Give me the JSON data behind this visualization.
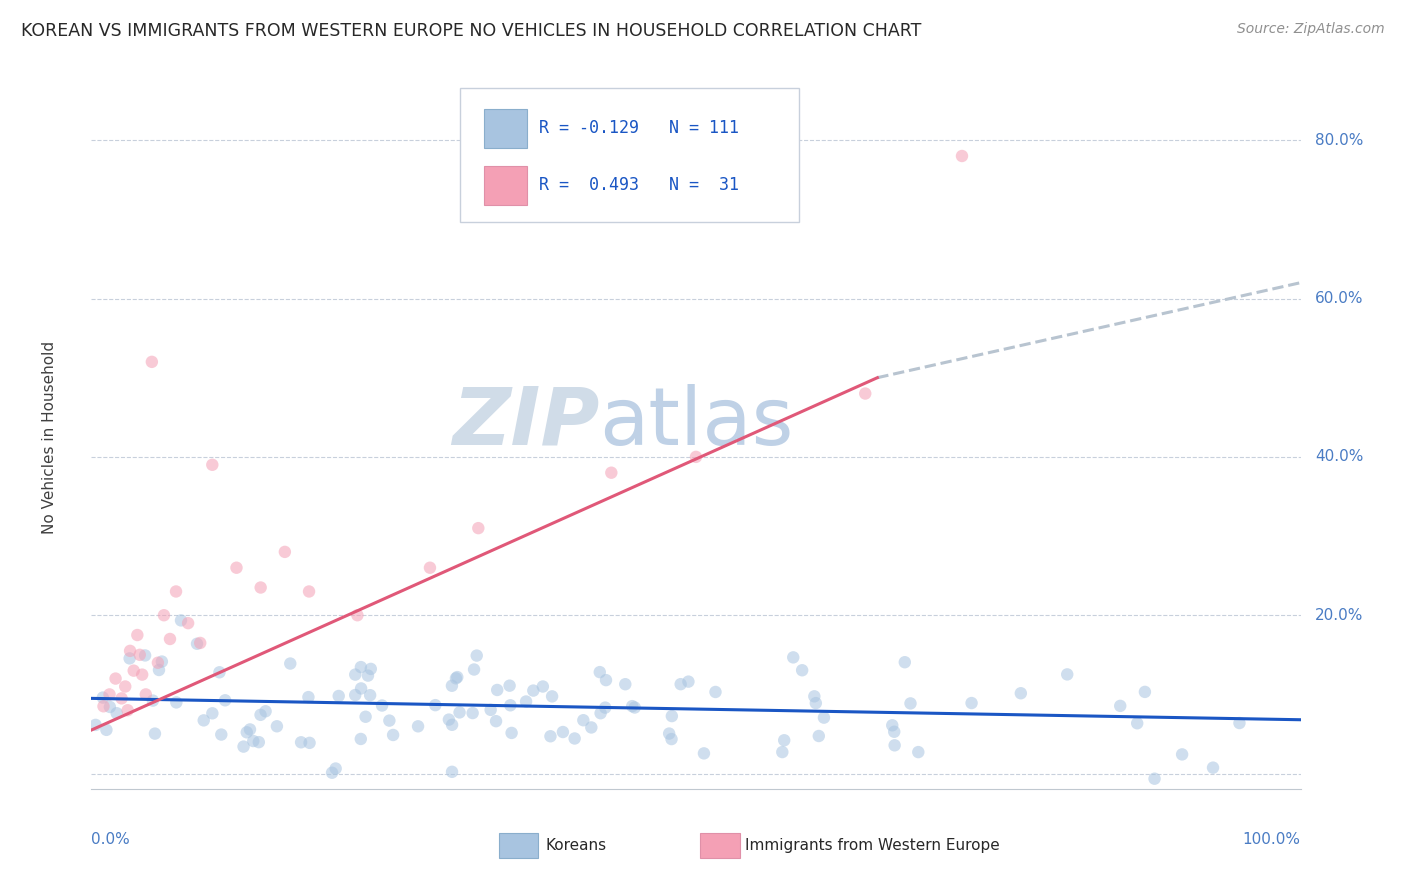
{
  "title": "KOREAN VS IMMIGRANTS FROM WESTERN EUROPE NO VEHICLES IN HOUSEHOLD CORRELATION CHART",
  "source": "Source: ZipAtlas.com",
  "ylabel": "No Vehicles in Household",
  "xmin": 0.0,
  "xmax": 1.0,
  "ymin": -0.02,
  "ymax": 0.87,
  "ytick_vals": [
    0.0,
    0.2,
    0.4,
    0.6,
    0.8
  ],
  "ytick_labels": [
    "",
    "20.0%",
    "40.0%",
    "60.0%",
    "80.0%"
  ],
  "korean_R": -0.129,
  "korean_N": 111,
  "western_R": 0.493,
  "western_N": 31,
  "korean_color": "#a8c4e0",
  "western_color": "#f4a0b5",
  "korean_line_color": "#1a56c4",
  "western_line_color": "#e05878",
  "extension_line_color": "#b8c4d0",
  "watermark_zip": "ZIP",
  "watermark_atlas": "atlas",
  "watermark_color": "#d0dce8",
  "background_color": "#ffffff",
  "grid_color": "#c8d0dc",
  "legend_text_color": "#1a56c4",
  "title_color": "#282828",
  "source_color": "#909090",
  "scatter_alpha": 0.55,
  "scatter_size": 80,
  "koreans_label": "Koreans",
  "western_label": "Immigrants from Western Europe",
  "korean_line_start_x": 0.0,
  "korean_line_start_y": 0.095,
  "korean_line_end_x": 1.0,
  "korean_line_end_y": 0.068,
  "western_line_start_x": 0.0,
  "western_line_start_y": 0.055,
  "western_line_solid_end_x": 0.65,
  "western_line_solid_end_y": 0.5,
  "western_line_dash_end_x": 1.0,
  "western_line_dash_end_y": 0.62
}
